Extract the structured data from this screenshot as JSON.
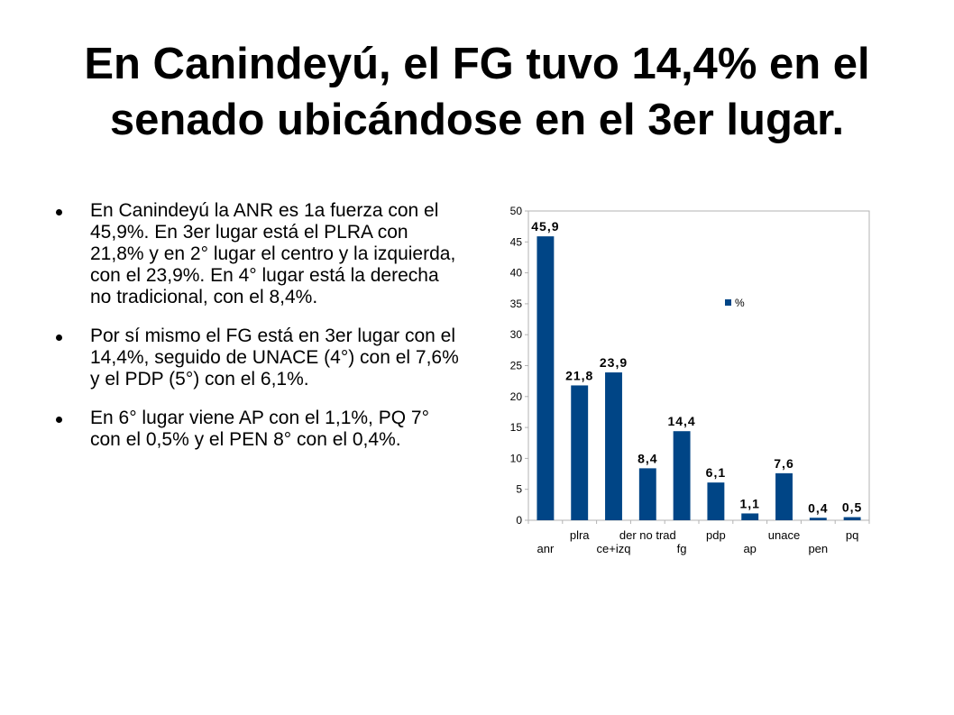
{
  "slide": {
    "title_line1": "En Canindeyú, el FG tuvo 14,4% en el",
    "title_line2": "senado ubicándose en el 3er lugar.",
    "bullets": [
      "En Canindeyú la ANR es 1a fuerza con el 45,9%. En 3er lugar está el PLRA con 21,8% y en 2° lugar el centro y la izquierda, con el 23,9%. En 4° lugar está la derecha no tradicional, con el 8,4%.",
      "Por sí mismo el FG está en 3er lugar con el 14,4%, seguido de UNACE (4°) con el 7,6% y el PDP (5°) con el 6,1%.",
      "En 6° lugar viene AP con el 1,1%, PQ 7° con el 0,5% y el PEN 8° con el 0,4%."
    ]
  },
  "chart_data": {
    "type": "bar",
    "categories": [
      "anr",
      "plra",
      "ce+izq",
      "der no trad",
      "fg",
      "pdp",
      "ap",
      "unace",
      "pen",
      "pq"
    ],
    "series": [
      {
        "name": "%",
        "values": [
          45.9,
          21.8,
          23.9,
          8.4,
          14.4,
          6.1,
          1.1,
          7.6,
          0.4,
          0.5
        ],
        "labels": [
          "45,9",
          "21,8",
          "23,9",
          "8,4",
          "14,4",
          "6,1",
          "1,1",
          "7,6",
          "0,4",
          "0,5"
        ]
      }
    ],
    "yticks": [
      0,
      5,
      10,
      15,
      20,
      25,
      30,
      35,
      40,
      45,
      50
    ],
    "ylim": [
      0,
      50
    ],
    "bar_color": "#004586",
    "legend_position": "inside-top-right",
    "grid": false
  }
}
